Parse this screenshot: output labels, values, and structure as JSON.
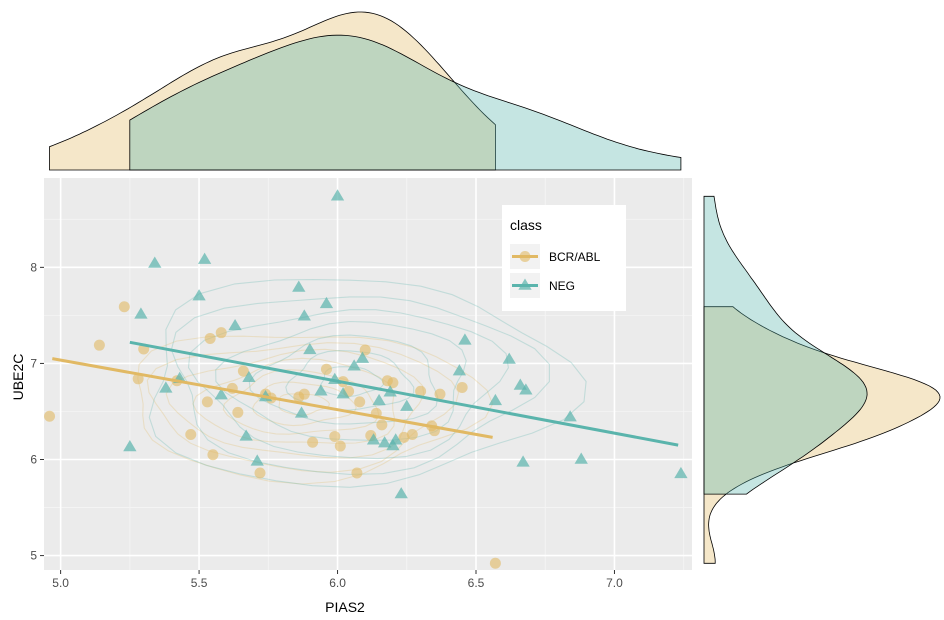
{
  "chart_data": {
    "type": "scatter",
    "xlabel": "PIAS2",
    "ylabel": "UBE2C",
    "xlim": [
      4.94,
      7.28
    ],
    "ylim": [
      4.85,
      8.93
    ],
    "x_ticks": [
      5.0,
      5.5,
      6.0,
      6.5,
      7.0
    ],
    "x_tick_labels": [
      "5.0",
      "5.5",
      "6.0",
      "6.5",
      "7.0"
    ],
    "y_ticks": [
      5,
      6,
      7,
      8
    ],
    "y_tick_labels": [
      "5",
      "6",
      "7",
      "8"
    ],
    "grid": true,
    "legend": {
      "title": "class",
      "placement": "top-right-inside"
    },
    "marginal": {
      "top": "density",
      "right": "density"
    },
    "series": [
      {
        "name": "BCR/ABL",
        "color": "#E1B964",
        "marker": "circle",
        "points": [
          [
            4.96,
            6.45
          ],
          [
            5.14,
            7.19
          ],
          [
            5.23,
            7.59
          ],
          [
            5.28,
            6.84
          ],
          [
            5.3,
            7.15
          ],
          [
            5.42,
            6.82
          ],
          [
            5.47,
            6.26
          ],
          [
            5.53,
            6.6
          ],
          [
            5.54,
            7.26
          ],
          [
            5.55,
            6.05
          ],
          [
            5.58,
            7.32
          ],
          [
            5.62,
            6.74
          ],
          [
            5.64,
            6.49
          ],
          [
            5.66,
            6.92
          ],
          [
            5.72,
            5.86
          ],
          [
            5.74,
            6.68
          ],
          [
            5.76,
            6.64
          ],
          [
            5.86,
            6.65
          ],
          [
            5.88,
            6.68
          ],
          [
            5.91,
            6.18
          ],
          [
            5.96,
            6.94
          ],
          [
            5.99,
            6.24
          ],
          [
            6.01,
            6.14
          ],
          [
            6.02,
            6.81
          ],
          [
            6.04,
            6.71
          ],
          [
            6.07,
            5.86
          ],
          [
            6.08,
            6.6
          ],
          [
            6.1,
            7.14
          ],
          [
            6.12,
            6.25
          ],
          [
            6.14,
            6.48
          ],
          [
            6.16,
            6.36
          ],
          [
            6.18,
            6.82
          ],
          [
            6.2,
            6.8
          ],
          [
            6.24,
            6.23
          ],
          [
            6.27,
            6.26
          ],
          [
            6.3,
            6.71
          ],
          [
            6.34,
            6.35
          ],
          [
            6.35,
            6.3
          ],
          [
            6.37,
            6.68
          ],
          [
            6.45,
            6.75
          ],
          [
            6.57,
            4.92
          ]
        ],
        "fit": {
          "x": [
            4.97,
            6.56
          ],
          "y": [
            7.05,
            6.23
          ]
        }
      },
      {
        "name": "NEG",
        "color": "#5AB4AC",
        "marker": "triangle",
        "points": [
          [
            5.25,
            6.13
          ],
          [
            5.29,
            7.51
          ],
          [
            5.34,
            8.04
          ],
          [
            5.38,
            6.74
          ],
          [
            5.43,
            6.84
          ],
          [
            5.5,
            7.7
          ],
          [
            5.52,
            8.08
          ],
          [
            5.58,
            6.67
          ],
          [
            5.63,
            7.39
          ],
          [
            5.67,
            6.24
          ],
          [
            5.68,
            6.85
          ],
          [
            5.71,
            5.98
          ],
          [
            5.74,
            6.65
          ],
          [
            5.86,
            7.79
          ],
          [
            5.87,
            6.48
          ],
          [
            5.88,
            7.49
          ],
          [
            5.9,
            7.14
          ],
          [
            5.94,
            6.71
          ],
          [
            5.96,
            7.62
          ],
          [
            5.99,
            6.83
          ],
          [
            6.0,
            8.74
          ],
          [
            6.02,
            6.68
          ],
          [
            6.06,
            6.97
          ],
          [
            6.09,
            7.05
          ],
          [
            6.13,
            6.2
          ],
          [
            6.15,
            6.61
          ],
          [
            6.17,
            6.17
          ],
          [
            6.19,
            6.7
          ],
          [
            6.2,
            6.14
          ],
          [
            6.21,
            6.2
          ],
          [
            6.23,
            5.64
          ],
          [
            6.25,
            6.55
          ],
          [
            6.44,
            6.92
          ],
          [
            6.46,
            7.24
          ],
          [
            6.57,
            6.61
          ],
          [
            6.62,
            7.04
          ],
          [
            6.66,
            6.77
          ],
          [
            6.67,
            5.97
          ],
          [
            6.68,
            6.72
          ],
          [
            6.84,
            6.44
          ],
          [
            6.88,
            6.0
          ],
          [
            7.24,
            5.85
          ]
        ],
        "fit": {
          "x": [
            5.25,
            7.23
          ],
          "y": [
            7.22,
            6.15
          ]
        }
      }
    ]
  }
}
